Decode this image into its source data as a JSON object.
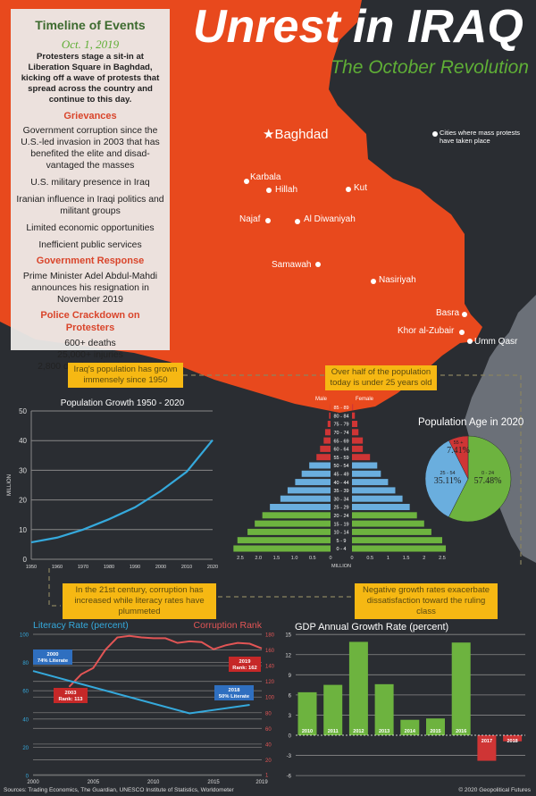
{
  "header": {
    "title": "Unrest in IRAQ",
    "subtitle": "The October Revolution"
  },
  "timeline": {
    "heading": "Timeline of Events",
    "date": "Oct. 1, 2019",
    "date_event": "Protesters stage a sit-in at Liberation Square in Baghdad, kicking off a wave of protests that spread across the country and continue to this day.",
    "grievances_heading": "Grievances",
    "grievances": [
      "Government corruption since the U.S.-led invasion in 2003 that has benefited the elite and disad-vantaged the masses",
      "U.S. military presence in Iraq",
      "Iranian influence in Iraqi politics and militant groups",
      "Limited economic opportunities",
      "Inefficient public services"
    ],
    "response_heading": "Government Response",
    "response": "Prime Minister Adel Abdul-Mahdi announces his resignation in November 2019",
    "crackdown_heading": "Police Crackdown on Protesters",
    "crackdown": [
      "600+ deaths",
      "25,000+ injuries",
      "2,800 detained (estimate)"
    ]
  },
  "map": {
    "capital": "Baghdad",
    "legend": "Cities where mass protests have taken place",
    "cities": [
      "Karbala",
      "Hillah",
      "Kut",
      "Najaf",
      "Al Diwaniyah",
      "Samawah",
      "Nasiriyah",
      "Basra",
      "Khor al-Zubair",
      "Umm Qasr"
    ]
  },
  "callouts": [
    "Iraq's population has grown immensely since 1950",
    "Over half of the population today is under 25 years old",
    "In the 21st century, corruption has increased while literacy rates have plummeted",
    "Negative growth rates exacerbate dissatisfaction toward the ruling class"
  ],
  "colors": {
    "map": "#e8491d",
    "background": "#2a2d32",
    "green": "#6db33f",
    "blue": "#6aaede",
    "red": "#cf3535",
    "callout": "#f6b813",
    "literacy": "#35a9dc",
    "corruption": "#e25555"
  },
  "sources": "Sources: Trading Economics, The Guardian, UNESCO Institute of Statistics, Worldometer",
  "copyright": "© 2020 Geopolitical Futures",
  "chart_data": [
    {
      "type": "line",
      "title": "Population Growth 1950 - 2020",
      "ylabel": "MILLION",
      "x": [
        1950,
        1960,
        1970,
        1980,
        1990,
        2000,
        2010,
        2020
      ],
      "values": [
        5.7,
        7.3,
        10,
        13.5,
        17.5,
        23,
        29.5,
        40.2
      ],
      "xticks": [
        "1950",
        "1960",
        "1970",
        "1980",
        "1990",
        "2000",
        "2010",
        "2020"
      ],
      "yticks": [
        "0",
        "10",
        "20",
        "30",
        "40",
        "50"
      ],
      "ylim": [
        0,
        50
      ],
      "grid": true
    },
    {
      "type": "bar",
      "orientation": "population-pyramid",
      "xlabel": "MILLION",
      "left_label": "Male",
      "right_label": "Female",
      "categories": [
        "0 - 4",
        "5 - 9",
        "10 - 14",
        "15 - 19",
        "20 - 24",
        "25 - 29",
        "30 - 34",
        "35 - 39",
        "40 - 44",
        "45 - 49",
        "50 - 54",
        "55 - 59",
        "60 - 64",
        "65 - 69",
        "70 - 74",
        "75 - 79",
        "80 - 84",
        "85 - 89"
      ],
      "series": [
        {
          "name": "Male",
          "values": [
            2.69,
            2.58,
            2.3,
            2.1,
            1.89,
            1.68,
            1.39,
            1.19,
            0.98,
            0.8,
            0.59,
            0.39,
            0.29,
            0.19,
            0.15,
            0.08,
            0.04,
            0.01
          ]
        },
        {
          "name": "Female",
          "values": [
            2.6,
            2.5,
            2.2,
            2.0,
            1.8,
            1.6,
            1.4,
            1.2,
            1.0,
            0.8,
            0.7,
            0.5,
            0.3,
            0.3,
            0.18,
            0.15,
            0.08,
            0.03
          ]
        }
      ],
      "xticks_left": [
        "2.5",
        "2.0",
        "1.5",
        "1.0",
        "0.5",
        "0"
      ],
      "xticks_right": [
        "0",
        "0.5",
        "1",
        "1.5",
        "2",
        "2.5"
      ]
    },
    {
      "type": "pie",
      "title": "Population Age in 2020",
      "slices": [
        {
          "label": "0 - 24",
          "value": 57.48,
          "text": "57.48%"
        },
        {
          "label": "25 - 54",
          "value": 35.11,
          "text": "35.11%"
        },
        {
          "label": "55 +",
          "value": 7.41,
          "text": "7.41%"
        }
      ]
    },
    {
      "type": "line",
      "title_left": "Literacy Rate (percent)",
      "title_right": "Corruption Rank",
      "xlim": [
        2000,
        2019
      ],
      "xticks": [
        "2000",
        "2005",
        "2010",
        "2015",
        "2019"
      ],
      "yticks_left": [
        "0",
        "20",
        "40",
        "60",
        "80",
        "100"
      ],
      "yticks_right": [
        "1",
        "20",
        "40",
        "60",
        "80",
        "100",
        "120",
        "140",
        "160",
        "180"
      ],
      "series": [
        {
          "name": "Literacy Rate (percent)",
          "axis": "left",
          "x": [
            2000,
            2013,
            2018
          ],
          "values": [
            74,
            44,
            50
          ]
        },
        {
          "name": "Corruption Rank",
          "axis": "right",
          "x": [
            2003,
            2004,
            2005,
            2006,
            2007,
            2008,
            2009,
            2010,
            2011,
            2012,
            2013,
            2014,
            2015,
            2016,
            2017,
            2018,
            2019
          ],
          "values": [
            113,
            129,
            137,
            160,
            176,
            178,
            176,
            175,
            175,
            169,
            171,
            170,
            161,
            166,
            169,
            168,
            162
          ]
        }
      ],
      "annotations": [
        {
          "line1": "2000",
          "line2": "74% Literate"
        },
        {
          "line1": "2003",
          "line2": "Rank: 113"
        },
        {
          "line1": "2019",
          "line2": "Rank: 162"
        },
        {
          "line1": "2018",
          "line2": "50% Literate"
        }
      ]
    },
    {
      "type": "bar",
      "title": "GDP Annual Growth Rate (percent)",
      "categories": [
        "2010",
        "2011",
        "2012",
        "2013",
        "2014",
        "2015",
        "2016",
        "2017",
        "2018"
      ],
      "values": [
        6.4,
        7.5,
        13.9,
        7.6,
        2.3,
        2.5,
        13.8,
        -3.8,
        -0.9
      ],
      "yticks": [
        "-6",
        "-3",
        "0",
        "3",
        "6",
        "9",
        "12",
        "15"
      ],
      "ylim": [
        -6,
        15
      ],
      "grid": true
    }
  ]
}
